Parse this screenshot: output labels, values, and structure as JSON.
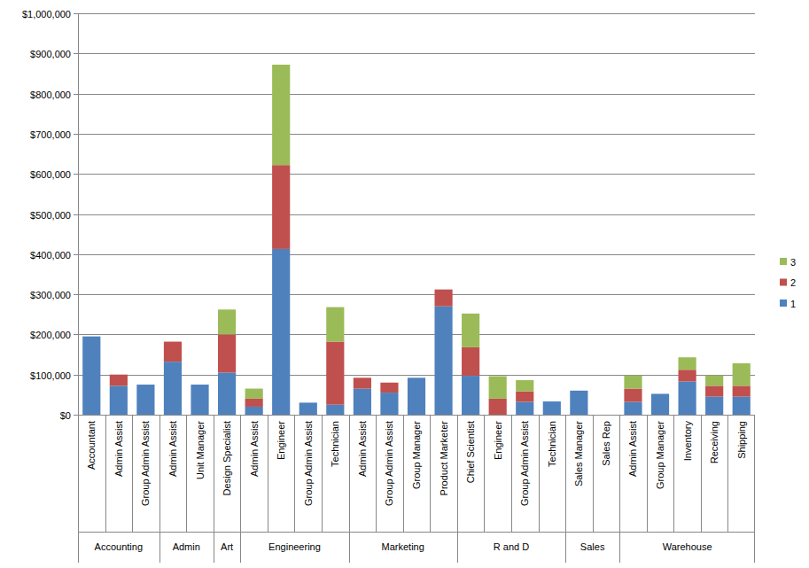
{
  "chart_data": {
    "type": "bar",
    "stacked": true,
    "grid": true,
    "legend": "right",
    "categories": [
      "Accountant",
      "Admin Assist",
      "Group Admin Assist",
      "Admin Assist",
      "Unit Manager",
      "Design Specialist",
      "Admin Assist",
      "Engineer",
      "Group Admin Assist",
      "Technician",
      "Admin Assist",
      "Group Admin Assist",
      "Group Manager",
      "Product Marketer",
      "Chief Scientist",
      "Engineer",
      "Group Admin Assist",
      "Technician",
      "Sales Manager",
      "Sales Rep",
      "Admin Assist",
      "Group Manager",
      "Inventory",
      "Receiving",
      "Shipping"
    ],
    "groups": [
      "Accounting",
      "Accounting",
      "Accounting",
      "Admin",
      "Admin",
      "Art",
      "Engineering",
      "Engineering",
      "Engineering",
      "Engineering",
      "Marketing",
      "Marketing",
      "Marketing",
      "Marketing",
      "R and D",
      "R and D",
      "R and D",
      "R and D",
      "Sales",
      "Sales",
      "Warehouse",
      "Warehouse",
      "Warehouse",
      "Warehouse",
      "Warehouse"
    ],
    "series": [
      {
        "name": "1",
        "color": "#4f81bd",
        "values": [
          195000,
          72000,
          75000,
          132000,
          75000,
          105000,
          20000,
          413000,
          30000,
          25000,
          65000,
          55000,
          92000,
          270000,
          97000,
          0,
          32000,
          33000,
          60000,
          0,
          32000,
          52000,
          83000,
          45000,
          45000
        ]
      },
      {
        "name": "2",
        "color": "#c0504d",
        "values": [
          0,
          28000,
          0,
          50000,
          0,
          95000,
          20000,
          209000,
          0,
          157000,
          27000,
          25000,
          0,
          42000,
          71000,
          40000,
          26000,
          0,
          0,
          0,
          33000,
          0,
          29000,
          27000,
          27000
        ]
      },
      {
        "name": "3",
        "color": "#9bbb59",
        "values": [
          0,
          0,
          0,
          0,
          0,
          62000,
          25000,
          250000,
          0,
          86000,
          0,
          0,
          0,
          0,
          84000,
          56000,
          28000,
          0,
          0,
          0,
          33000,
          0,
          31000,
          26000,
          56000
        ]
      }
    ],
    "ylim": [
      0,
      1000000
    ],
    "yticks": [
      {
        "value": 0,
        "label": "$0"
      },
      {
        "value": 100000,
        "label": "$100,000"
      },
      {
        "value": 200000,
        "label": "$200,000"
      },
      {
        "value": 300000,
        "label": "$300,000"
      },
      {
        "value": 400000,
        "label": "$400,000"
      },
      {
        "value": 500000,
        "label": "$500,000"
      },
      {
        "value": 600000,
        "label": "$600,000"
      },
      {
        "value": 700000,
        "label": "$700,000"
      },
      {
        "value": 800000,
        "label": "$800,000"
      },
      {
        "value": 900000,
        "label": "$900,000"
      },
      {
        "value": 1000000,
        "label": "$1,000,000"
      }
    ]
  }
}
